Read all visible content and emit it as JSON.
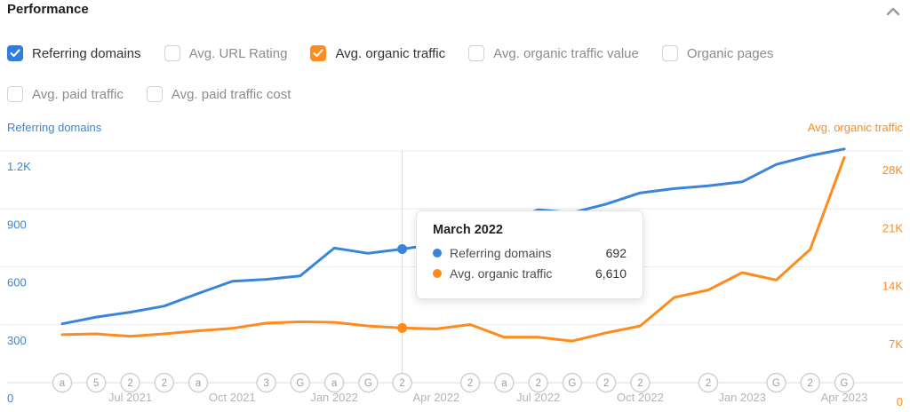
{
  "header": {
    "title": "Performance"
  },
  "metrics": {
    "row1": [
      {
        "label": "Referring domains",
        "checked": true,
        "color": "#2f7de1"
      },
      {
        "label": "Avg. URL Rating",
        "checked": false,
        "color": null
      },
      {
        "label": "Avg. organic traffic",
        "checked": true,
        "color": "#ff8c21"
      },
      {
        "label": "Avg. organic traffic value",
        "checked": false,
        "color": null
      },
      {
        "label": "Organic pages",
        "checked": false,
        "color": null
      }
    ],
    "row2": [
      {
        "label": "Avg. paid traffic",
        "checked": false,
        "color": null
      },
      {
        "label": "Avg. paid traffic cost",
        "checked": false,
        "color": null
      }
    ]
  },
  "chart_data": {
    "type": "line",
    "x": [
      "May 2021",
      "Jun 2021",
      "Jul 2021",
      "Aug 2021",
      "Sep 2021",
      "Oct 2021",
      "Nov 2021",
      "Dec 2021",
      "Jan 2022",
      "Feb 2022",
      "Mar 2022",
      "Apr 2022",
      "May 2022",
      "Jun 2022",
      "Jul 2022",
      "Aug 2022",
      "Sep 2022",
      "Oct 2022",
      "Nov 2022",
      "Dec 2022",
      "Jan 2023",
      "Feb 2023",
      "Mar 2023",
      "Apr 2023"
    ],
    "x_tick_indices": [
      2,
      5,
      8,
      11,
      14,
      17,
      20,
      23
    ],
    "x_tick_labels": [
      "Jul 2021",
      "Oct 2021",
      "Jan 2022",
      "Apr 2022",
      "Jul 2022",
      "Oct 2022",
      "Jan 2023",
      "Apr 2023"
    ],
    "series": [
      {
        "name": "Referring domains",
        "axis": "left",
        "color": "#3a85da",
        "values": [
          305,
          340,
          365,
          397,
          462,
          525,
          535,
          553,
          697,
          670,
          692,
          718,
          760,
          830,
          895,
          880,
          925,
          983,
          1005,
          1020,
          1040,
          1130,
          1175,
          1210
        ]
      },
      {
        "name": "Avg. organic traffic",
        "axis": "right",
        "color": "#ff8a1d",
        "values": [
          5800,
          5900,
          5600,
          5900,
          6280,
          6570,
          7200,
          7360,
          7290,
          6860,
          6610,
          6500,
          7030,
          5490,
          5490,
          5030,
          6030,
          6860,
          10300,
          11200,
          13300,
          12400,
          16100,
          27200
        ]
      }
    ],
    "y_left": {
      "title": "Referring domains",
      "color": "#3a85da",
      "min": 0,
      "grid_values": [
        1200,
        900,
        600,
        300,
        0
      ],
      "ticks": [
        "1.2K",
        "900",
        "600",
        "300",
        "0"
      ]
    },
    "y_right": {
      "title": "Avg. organic traffic",
      "color": "#ff8a1d",
      "min": 0,
      "grid_values": [
        28000,
        21000,
        14000,
        7000,
        0
      ],
      "ticks": [
        "28K",
        "21K",
        "14K",
        "7K",
        "0"
      ]
    },
    "grid": true,
    "legend_position": "none",
    "highlight_index": 10,
    "event_markers": [
      {
        "month_index": 0,
        "glyph": "a"
      },
      {
        "month_index": 1,
        "glyph": "5"
      },
      {
        "month_index": 2,
        "glyph": "2"
      },
      {
        "month_index": 3,
        "glyph": "2"
      },
      {
        "month_index": 4,
        "glyph": "a"
      },
      {
        "month_index": 6,
        "glyph": "3"
      },
      {
        "month_index": 7,
        "glyph": "G"
      },
      {
        "month_index": 8,
        "glyph": "a"
      },
      {
        "month_index": 9,
        "glyph": "G"
      },
      {
        "month_index": 10,
        "glyph": "2"
      },
      {
        "month_index": 12,
        "glyph": "2"
      },
      {
        "month_index": 13,
        "glyph": "a"
      },
      {
        "month_index": 14,
        "glyph": "2"
      },
      {
        "month_index": 15,
        "glyph": "G"
      },
      {
        "month_index": 16,
        "glyph": "2"
      },
      {
        "month_index": 17,
        "glyph": "2"
      },
      {
        "month_index": 19,
        "glyph": "2"
      },
      {
        "month_index": 21,
        "glyph": "G"
      },
      {
        "month_index": 22,
        "glyph": "2"
      },
      {
        "month_index": 23,
        "glyph": "G"
      }
    ]
  },
  "tooltip": {
    "title": "March 2022",
    "rows": [
      {
        "label": "Referring domains",
        "value": "692",
        "color": "#3a85da"
      },
      {
        "label": "Avg. organic traffic",
        "value": "6,610",
        "color": "#ff8a1d"
      }
    ]
  }
}
